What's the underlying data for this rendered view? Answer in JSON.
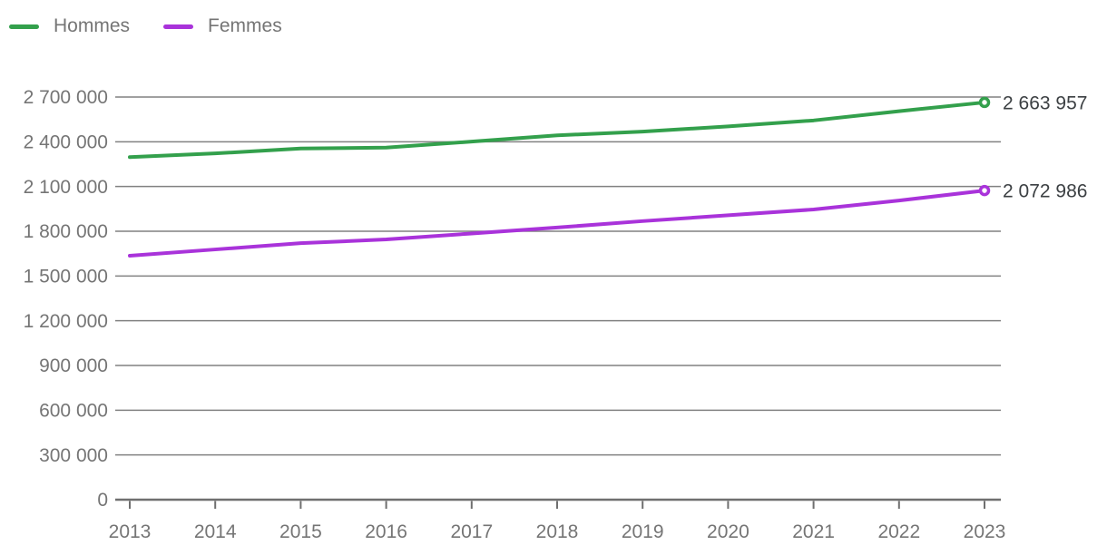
{
  "legend": {
    "items": [
      {
        "label": "Hommes",
        "color": "#33a04c",
        "icon": "line-swatch"
      },
      {
        "label": "Femmes",
        "color": "#a933da",
        "icon": "line-swatch"
      }
    ]
  },
  "chart_data": {
    "type": "line",
    "x": [
      2013,
      2014,
      2015,
      2016,
      2017,
      2018,
      2019,
      2020,
      2021,
      2022,
      2023
    ],
    "xtick_labels": [
      "2013",
      "2014",
      "2015",
      "2016",
      "2017",
      "2018",
      "2019",
      "2020",
      "2021",
      "2022",
      "2023"
    ],
    "series": [
      {
        "name": "Hommes",
        "color": "#33a04c",
        "values": [
          2297000,
          2322000,
          2355000,
          2361000,
          2401000,
          2443000,
          2468000,
          2503000,
          2543000,
          2605000,
          2663957
        ],
        "end_value": 2663957,
        "end_label": "2 663 957",
        "end_marker": "open-circle"
      },
      {
        "name": "Femmes",
        "color": "#a933da",
        "values": [
          1636000,
          1678000,
          1720000,
          1745000,
          1785000,
          1825000,
          1868000,
          1907000,
          1946000,
          2006000,
          2072986
        ],
        "end_value": 2072986,
        "end_label": "2 072 986",
        "end_marker": "open-circle"
      }
    ],
    "ylim": [
      0,
      2700000
    ],
    "ytick_step": 300000,
    "ytick_labels": [
      "0",
      "300 000",
      "600 000",
      "900 000",
      "1 200 000",
      "1 500 000",
      "1 800 000",
      "2 100 000",
      "2 400 000",
      "2 700 000"
    ],
    "grid": true,
    "legend_position": "top-left"
  },
  "colors": {
    "background": "#ffffff",
    "gridline": "#818181",
    "axis": "#6f6f6f",
    "tick_label": "#757575",
    "end_label": "#3c4043"
  }
}
